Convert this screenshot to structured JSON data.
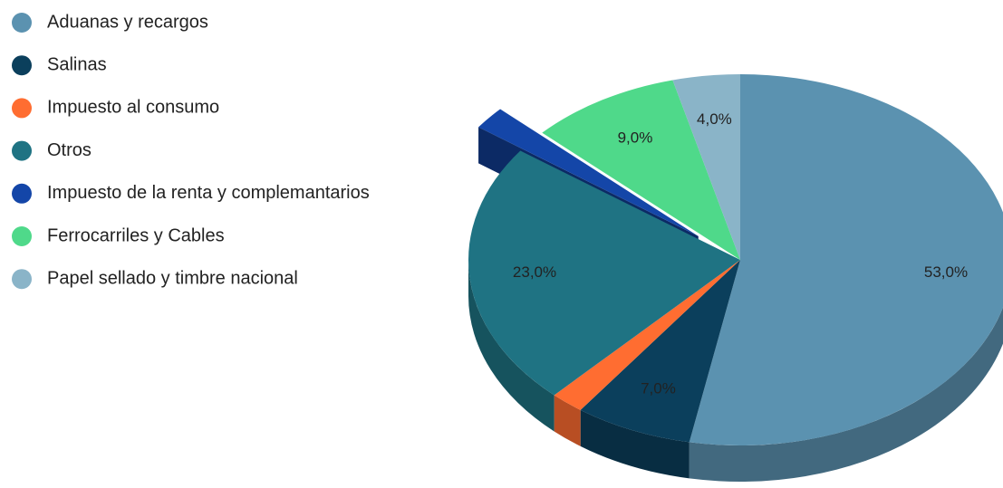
{
  "chart_data": {
    "type": "pie3d",
    "categories": [
      "Aduanas y recargos",
      "Salinas",
      "Impuesto al consumo",
      "Otros",
      "Impuesto de la renta y complemantarios",
      "Ferrocarriles y Cables",
      "Papel sellado y timbre nacional"
    ],
    "values": [
      53,
      7,
      2,
      23,
      2,
      9,
      4
    ],
    "value_labels": [
      "53,0%",
      "7,0%",
      null,
      "23,0%",
      null,
      "9,0%",
      "4,0%"
    ],
    "colors": [
      "#5b92b0",
      "#0b3f5c",
      "#ff6d31",
      "#1f7383",
      "#1446a8",
      "#4fd98a",
      "#8ab4c8"
    ],
    "exploded": [
      false,
      false,
      false,
      false,
      true,
      false,
      false
    ],
    "legend": "left"
  }
}
